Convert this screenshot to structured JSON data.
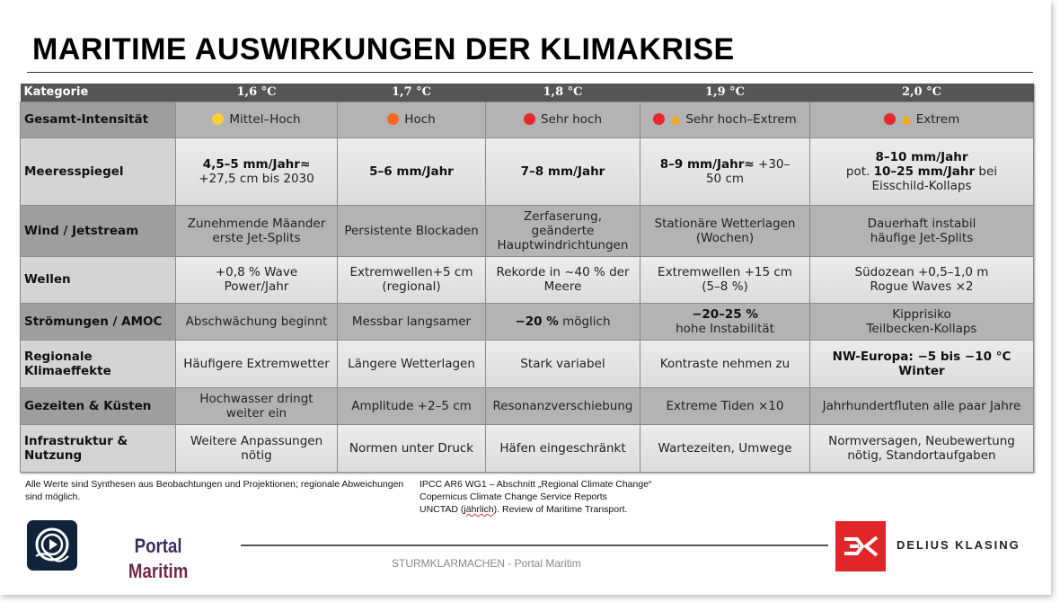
{
  "title": "MARITIME AUSWIRKUNGEN DER KLIMAKRISE",
  "colors": {
    "header_bg": "#555555",
    "dot_yellow": "#f7d038",
    "dot_orange": "#f26a21",
    "dot_red": "#e8262b",
    "warning": "#f2a81d",
    "brand_red": "#e0252b"
  },
  "table": {
    "headers": [
      "Kategorie",
      "1,6 °C",
      "1,7 °C",
      "1,8 °C",
      "1,9 °C",
      "2,0 °C"
    ],
    "rows": [
      {
        "label": "Gesamt-Intensität",
        "cells": [
          [
            {
              "dot": "#f7d038"
            },
            {
              "t": "Mittel–Hoch"
            }
          ],
          [
            {
              "dot": "#f26a21"
            },
            {
              "t": "Hoch"
            }
          ],
          [
            {
              "dot": "#e8262b"
            },
            {
              "t": "Sehr hoch"
            }
          ],
          [
            {
              "dot": "#e8262b"
            },
            {
              "warn": "warning-icon"
            },
            {
              "t": "Sehr hoch–Extrem"
            }
          ],
          [
            {
              "dot": "#e8262b"
            },
            {
              "warn": "warning-icon"
            },
            {
              "t": "Extrem"
            }
          ]
        ]
      },
      {
        "label": "Meeresspiegel",
        "cells": [
          [
            {
              "t": "4,5–5 mm/Jahr≈",
              "b": true
            },
            {
              "br": 1
            },
            {
              "t": "+27,5 cm bis 2030"
            }
          ],
          [
            {
              "t": "5–6 mm/Jahr",
              "b": true
            }
          ],
          [
            {
              "t": "7–8 mm/Jahr",
              "b": true
            }
          ],
          [
            {
              "t": "8–9 mm/Jahr≈",
              "b": true
            },
            {
              "t": " +30–"
            },
            {
              "br": 1
            },
            {
              "t": "50 cm"
            }
          ],
          [
            {
              "t": "8–10 mm/Jahr",
              "b": true
            },
            {
              "br": 1
            },
            {
              "t": "pot. "
            },
            {
              "t": "10–25 mm/Jahr",
              "b": true
            },
            {
              "t": " bei"
            },
            {
              "br": 1
            },
            {
              "t": "Eisschild-Kollaps"
            }
          ]
        ]
      },
      {
        "label": "Wind / Jetstream",
        "cells": [
          [
            {
              "t": "Zunehmende Mäander"
            },
            {
              "br": 1
            },
            {
              "t": "erste Jet-Splits"
            }
          ],
          [
            {
              "t": "Persistente Blockaden"
            }
          ],
          [
            {
              "t": "Zerfaserung,"
            },
            {
              "br": 1
            },
            {
              "t": "geänderte"
            },
            {
              "br": 1
            },
            {
              "t": "Hauptwindrichtungen"
            }
          ],
          [
            {
              "t": "Stationäre Wetterlagen"
            },
            {
              "br": 1
            },
            {
              "t": "(Wochen)"
            }
          ],
          [
            {
              "t": "Dauerhaft instabil"
            },
            {
              "br": 1
            },
            {
              "t": "häufige Jet-Splits"
            }
          ]
        ]
      },
      {
        "label": "Wellen",
        "cells": [
          [
            {
              "t": "+0,8 % Wave"
            },
            {
              "br": 1
            },
            {
              "t": "Power/Jahr"
            }
          ],
          [
            {
              "t": "Extremwellen+5 cm"
            },
            {
              "br": 1
            },
            {
              "t": "(regional)"
            }
          ],
          [
            {
              "t": "Rekorde in ~40 % der"
            },
            {
              "br": 1
            },
            {
              "t": "Meere"
            }
          ],
          [
            {
              "t": "Extremwellen +15 cm"
            },
            {
              "br": 1
            },
            {
              "t": "(5–8 %)"
            }
          ],
          [
            {
              "t": "Südozean +0,5–1,0 m"
            },
            {
              "br": 1
            },
            {
              "t": "Rogue Waves ×2"
            }
          ]
        ]
      },
      {
        "label": "Strömungen / AMOC",
        "cells": [
          [
            {
              "t": "Abschwächung beginnt"
            }
          ],
          [
            {
              "t": "Messbar langsamer"
            }
          ],
          [
            {
              "t": "−20 %",
              "b": true
            },
            {
              "t": " möglich"
            }
          ],
          [
            {
              "t": "−20–25 %",
              "b": true
            },
            {
              "br": 1
            },
            {
              "t": "hohe Instabilität"
            }
          ],
          [
            {
              "t": "Kipprisiko"
            },
            {
              "br": 1
            },
            {
              "t": "Teilbecken-Kollaps"
            }
          ]
        ]
      },
      {
        "label": "Regionale Klimaeffekte",
        "cells": [
          [
            {
              "t": "Häufigere Extremwetter"
            }
          ],
          [
            {
              "t": "Längere Wetterlagen"
            }
          ],
          [
            {
              "t": "Stark variabel"
            }
          ],
          [
            {
              "t": "Kontraste nehmen zu"
            }
          ],
          [
            {
              "t": "NW-Europa: −5 bis −10 °C",
              "b": true
            },
            {
              "br": 1
            },
            {
              "t": "Winter",
              "b": true
            }
          ]
        ]
      },
      {
        "label": "Gezeiten & Küsten",
        "cells": [
          [
            {
              "t": "Hochwasser dringt"
            },
            {
              "br": 1
            },
            {
              "t": "weiter ein"
            }
          ],
          [
            {
              "t": "Amplitude +2–5 cm"
            }
          ],
          [
            {
              "t": "Resonanzverschiebung"
            }
          ],
          [
            {
              "t": "Extreme Tiden ×10"
            }
          ],
          [
            {
              "t": "Jahrhundertfluten alle paar Jahre"
            }
          ]
        ]
      },
      {
        "label": "Infrastruktur & Nutzung",
        "cells": [
          [
            {
              "t": "Weitere  Anpassungen"
            },
            {
              "br": 1
            },
            {
              "t": "nötig"
            }
          ],
          [
            {
              "t": "Normen unter Druck"
            }
          ],
          [
            {
              "t": "Häfen eingeschränkt"
            }
          ],
          [
            {
              "t": "Wartezeiten, Umwege"
            }
          ],
          [
            {
              "t": "Normversagen, Neubewertung"
            },
            {
              "br": 1
            },
            {
              "t": "nötig, Standortaufgaben"
            }
          ]
        ]
      }
    ]
  },
  "note": "Alle Werte sind Synthesen aus Beobachtungen und Projektionen; regionale Abweichungen sind möglich.",
  "references": [
    "IPCC AR6 WG1 – Abschnitt „Regional Climate Change“",
    "Copernicus Climate Change Service Reports",
    "UNCTAD (jährlich). Review of Maritime Transport."
  ],
  "footer": {
    "logo_left_line1": "Portal",
    "logo_left_line2": "Maritim",
    "caption": "STURMKLARMACHEN - Portal Maritim",
    "brand_right": "DELIUS KLASING"
  }
}
